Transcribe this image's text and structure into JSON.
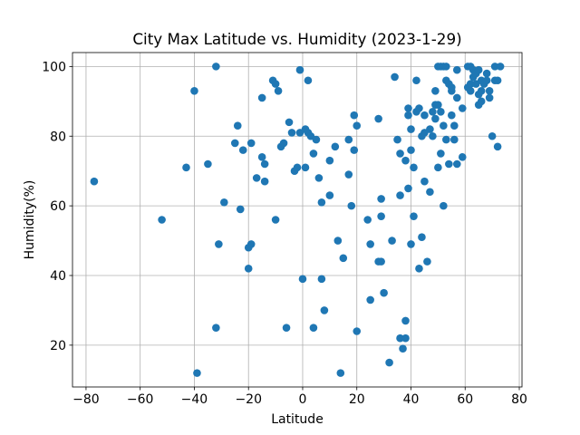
{
  "chart_data": {
    "type": "scatter",
    "title": "City Max Latitude vs. Humidity (2023-1-29)",
    "xlabel": "Latitude",
    "ylabel": "Humidity(%)",
    "xlim": [
      -85,
      81
    ],
    "ylim": [
      8,
      104
    ],
    "xticks": [
      -80,
      -60,
      -40,
      -20,
      0,
      20,
      40,
      60,
      80
    ],
    "yticks": [
      20,
      40,
      60,
      80,
      100
    ],
    "grid": true,
    "marker_color": "#1f77b4",
    "points": [
      [
        -77,
        67
      ],
      [
        -52,
        56
      ],
      [
        -43,
        71
      ],
      [
        -40,
        93
      ],
      [
        -39,
        12
      ],
      [
        -35,
        72
      ],
      [
        -32,
        100
      ],
      [
        -32,
        25
      ],
      [
        -31,
        49
      ],
      [
        -29,
        61
      ],
      [
        -25,
        78
      ],
      [
        -24,
        83
      ],
      [
        -23,
        59
      ],
      [
        -22,
        76
      ],
      [
        -20,
        48
      ],
      [
        -20,
        42
      ],
      [
        -19,
        49
      ],
      [
        -19,
        78
      ],
      [
        -17,
        68
      ],
      [
        -15,
        91
      ],
      [
        -15,
        74
      ],
      [
        -14,
        72
      ],
      [
        -14,
        67
      ],
      [
        -11,
        96
      ],
      [
        -10,
        95
      ],
      [
        -10,
        56
      ],
      [
        -9,
        93
      ],
      [
        -8,
        77
      ],
      [
        -7,
        78
      ],
      [
        -6,
        25
      ],
      [
        -5,
        84
      ],
      [
        -4,
        81
      ],
      [
        -3,
        70
      ],
      [
        -2,
        71
      ],
      [
        -1,
        81
      ],
      [
        -1,
        99
      ],
      [
        0,
        39
      ],
      [
        1,
        82
      ],
      [
        1,
        71
      ],
      [
        2,
        81
      ],
      [
        2,
        96
      ],
      [
        3,
        80
      ],
      [
        4,
        75
      ],
      [
        4,
        25
      ],
      [
        5,
        79
      ],
      [
        6,
        68
      ],
      [
        7,
        61
      ],
      [
        7,
        39
      ],
      [
        8,
        30
      ],
      [
        10,
        73
      ],
      [
        10,
        63
      ],
      [
        12,
        77
      ],
      [
        13,
        50
      ],
      [
        14,
        12
      ],
      [
        15,
        45
      ],
      [
        17,
        79
      ],
      [
        17,
        69
      ],
      [
        18,
        60
      ],
      [
        19,
        86
      ],
      [
        19,
        76
      ],
      [
        20,
        83
      ],
      [
        20,
        24
      ],
      [
        24,
        56
      ],
      [
        25,
        33
      ],
      [
        25,
        49
      ],
      [
        28,
        85
      ],
      [
        28,
        44
      ],
      [
        29,
        62
      ],
      [
        29,
        57
      ],
      [
        29,
        44
      ],
      [
        30,
        35
      ],
      [
        32,
        15
      ],
      [
        33,
        50
      ],
      [
        34,
        97
      ],
      [
        35,
        79
      ],
      [
        36,
        75
      ],
      [
        36,
        63
      ],
      [
        36,
        22
      ],
      [
        37,
        19
      ],
      [
        38,
        27
      ],
      [
        38,
        22
      ],
      [
        38,
        73
      ],
      [
        39,
        88
      ],
      [
        39,
        86
      ],
      [
        39,
        65
      ],
      [
        40,
        82
      ],
      [
        40,
        49
      ],
      [
        40,
        76
      ],
      [
        41,
        71
      ],
      [
        41,
        57
      ],
      [
        42,
        87
      ],
      [
        42,
        96
      ],
      [
        43,
        88
      ],
      [
        43,
        42
      ],
      [
        44,
        51
      ],
      [
        44,
        80
      ],
      [
        45,
        81
      ],
      [
        45,
        67
      ],
      [
        45,
        86
      ],
      [
        46,
        44
      ],
      [
        47,
        64
      ],
      [
        47,
        82
      ],
      [
        48,
        80
      ],
      [
        48,
        87
      ],
      [
        49,
        89
      ],
      [
        49,
        85
      ],
      [
        49,
        93
      ],
      [
        50,
        71
      ],
      [
        50,
        100
      ],
      [
        50,
        89
      ],
      [
        51,
        87
      ],
      [
        51,
        75
      ],
      [
        51,
        100
      ],
      [
        52,
        100
      ],
      [
        52,
        83
      ],
      [
        52,
        60
      ],
      [
        53,
        79
      ],
      [
        53,
        100
      ],
      [
        53,
        96
      ],
      [
        54,
        72
      ],
      [
        54,
        95
      ],
      [
        55,
        93
      ],
      [
        55,
        94
      ],
      [
        55,
        86
      ],
      [
        56,
        79
      ],
      [
        56,
        83
      ],
      [
        57,
        72
      ],
      [
        57,
        91
      ],
      [
        57,
        99
      ],
      [
        59,
        88
      ],
      [
        59,
        74
      ],
      [
        61,
        100
      ],
      [
        61,
        94
      ],
      [
        62,
        100
      ],
      [
        62,
        95
      ],
      [
        62,
        93
      ],
      [
        63,
        99
      ],
      [
        63,
        97
      ],
      [
        64,
        98
      ],
      [
        64,
        95
      ],
      [
        65,
        89
      ],
      [
        65,
        92
      ],
      [
        65,
        99
      ],
      [
        66,
        96
      ],
      [
        66,
        93
      ],
      [
        66,
        90
      ],
      [
        67,
        95
      ],
      [
        68,
        98
      ],
      [
        68,
        96
      ],
      [
        69,
        93
      ],
      [
        69,
        91
      ],
      [
        70,
        80
      ],
      [
        71,
        96
      ],
      [
        71,
        100
      ],
      [
        72,
        77
      ],
      [
        72,
        96
      ],
      [
        73,
        100
      ]
    ]
  }
}
